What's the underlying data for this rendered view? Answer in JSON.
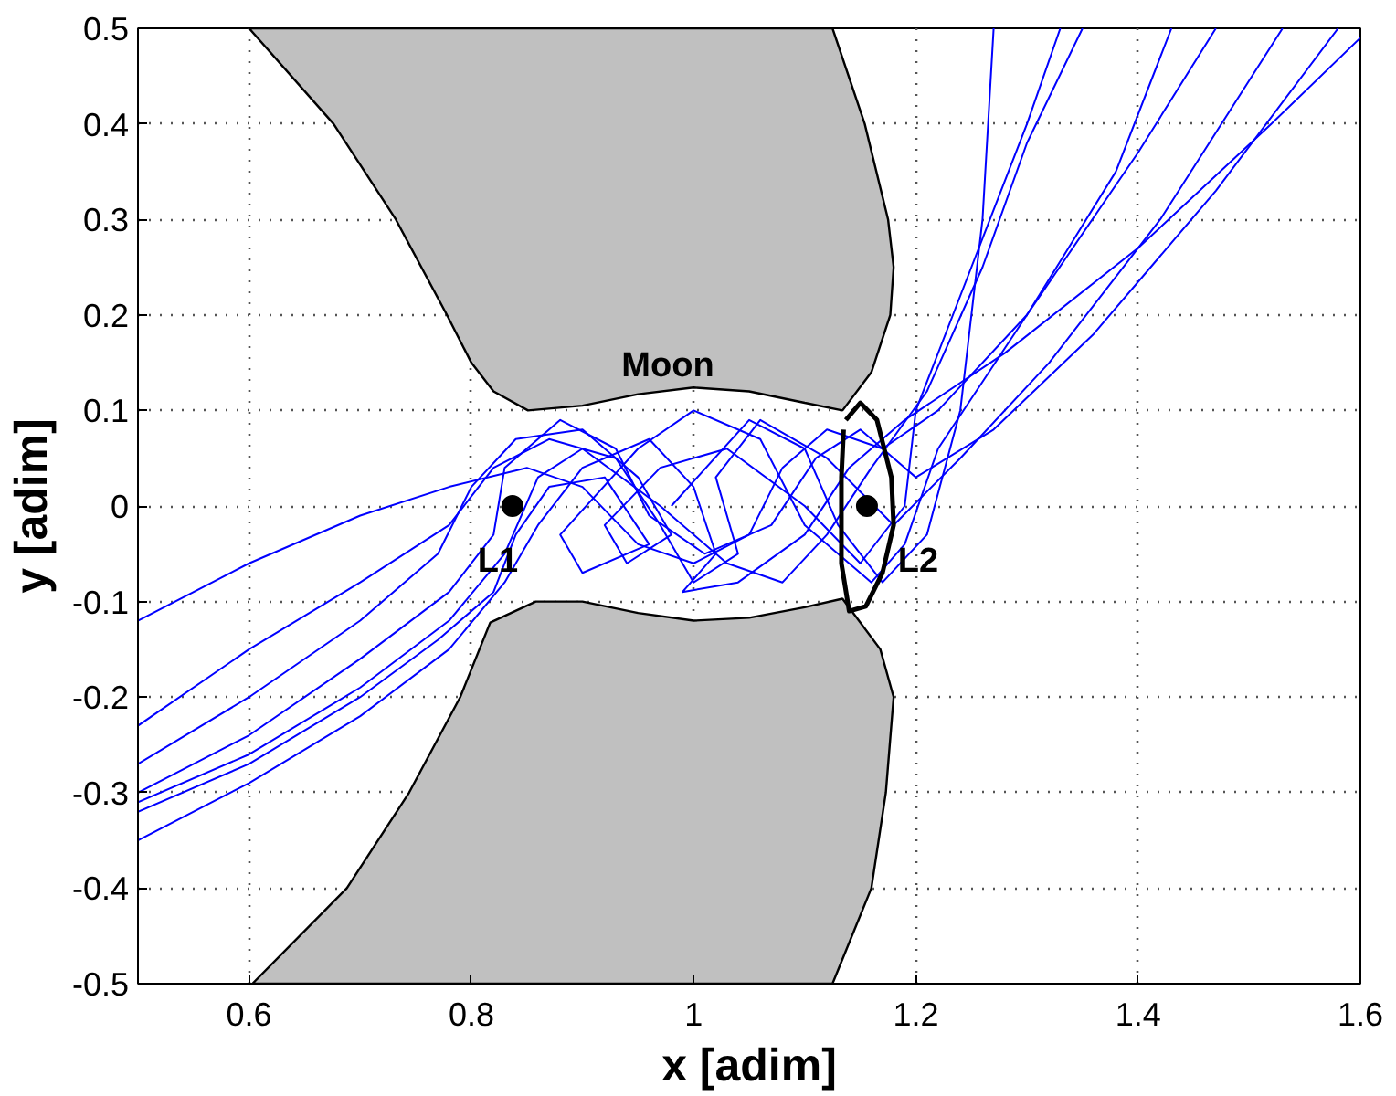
{
  "chart_data": {
    "type": "line",
    "xlabel": "x [adim]",
    "ylabel": "y [adim]",
    "xlim": [
      0.5,
      1.6
    ],
    "ylim": [
      -0.5,
      0.5
    ],
    "xticks": [
      0.6,
      0.8,
      {
        "value": 1,
        "label": "1"
      },
      1.2,
      1.4,
      1.6
    ],
    "yticks": [
      -0.5,
      -0.4,
      -0.3,
      -0.2,
      -0.1,
      {
        "value": 0,
        "label": "0"
      },
      0.1,
      0.2,
      0.3,
      0.4,
      0.5
    ],
    "grid": true,
    "series": [
      {
        "type": "area",
        "color": "#c0c0c0",
        "x": [
          0.6,
          0.676,
          0.732,
          0.778,
          0.8,
          0.82,
          0.851,
          0.9,
          0.95,
          1.0,
          1.05,
          1.1,
          1.134,
          1.16,
          1.177,
          1.18,
          1.175,
          1.154,
          1.125
        ],
        "values": [
          0.5,
          0.4,
          0.3,
          0.2,
          0.15,
          0.12,
          0.1,
          0.105,
          0.117,
          0.124,
          0.12,
          0.108,
          0.1,
          0.14,
          0.2,
          0.25,
          0.3,
          0.4,
          0.5
        ]
      },
      {
        "type": "area",
        "color": "#c0c0c0",
        "x": [
          0.603,
          0.688,
          0.744,
          0.79,
          0.817,
          0.858,
          0.9,
          0.95,
          1.0,
          1.05,
          1.1,
          1.134,
          1.168,
          1.18,
          1.173,
          1.16,
          1.125
        ],
        "values": [
          -0.5,
          -0.4,
          -0.3,
          -0.2,
          -0.122,
          -0.1,
          -0.1,
          -0.112,
          -0.12,
          -0.117,
          -0.106,
          -0.097,
          -0.15,
          -0.2,
          -0.3,
          -0.4,
          -0.5
        ]
      },
      {
        "color": "#0000ff",
        "x": [
          0.5,
          0.6,
          0.7,
          0.78,
          0.85,
          0.9,
          0.95,
          1.0,
          1.05,
          1.08,
          1.12,
          1.17,
          1.22,
          1.3,
          1.38,
          1.43
        ],
        "values": [
          -0.12,
          -0.06,
          -0.01,
          0.02,
          0.04,
          0.02,
          -0.04,
          -0.06,
          -0.03,
          0.04,
          0.08,
          0.06,
          0.1,
          0.2,
          0.35,
          0.5
        ]
      },
      {
        "color": "#0000ff",
        "x": [
          0.5,
          0.6,
          0.7,
          0.78,
          0.82,
          0.87,
          0.93,
          0.97,
          1.0,
          1.04,
          1.02,
          1.06,
          1.12,
          1.18,
          1.24,
          1.32,
          1.42,
          1.53
        ],
        "values": [
          -0.23,
          -0.15,
          -0.08,
          -0.02,
          0.04,
          0.07,
          0.05,
          -0.02,
          -0.08,
          -0.05,
          0.03,
          0.09,
          0.05,
          -0.02,
          0.05,
          0.15,
          0.3,
          0.5
        ]
      },
      {
        "color": "#0000ff",
        "x": [
          0.5,
          0.6,
          0.7,
          0.77,
          0.8,
          0.84,
          0.9,
          0.95,
          0.98,
          0.94,
          0.92,
          0.97,
          1.03,
          1.1,
          1.15,
          1.19,
          1.2,
          1.25,
          1.3,
          1.33
        ],
        "values": [
          -0.27,
          -0.2,
          -0.12,
          -0.05,
          0.02,
          0.07,
          0.08,
          0.03,
          -0.03,
          -0.06,
          -0.02,
          0.04,
          0.06,
          0.0,
          -0.06,
          0.0,
          0.1,
          0.25,
          0.4,
          0.5
        ]
      },
      {
        "color": "#0000ff",
        "x": [
          0.5,
          0.6,
          0.7,
          0.78,
          0.82,
          0.83,
          0.88,
          0.93,
          0.96,
          1.01,
          1.07,
          1.11,
          1.15,
          1.2,
          1.27,
          1.36,
          1.47,
          1.58
        ],
        "values": [
          -0.3,
          -0.24,
          -0.16,
          -0.09,
          -0.03,
          0.04,
          0.09,
          0.06,
          -0.01,
          -0.05,
          -0.02,
          0.05,
          0.08,
          0.03,
          0.08,
          0.18,
          0.33,
          0.5
        ]
      },
      {
        "color": "#0000ff",
        "x": [
          0.5,
          0.6,
          0.7,
          0.78,
          0.83,
          0.86,
          0.9,
          0.97,
          1.03,
          1.08,
          1.12,
          1.16,
          1.21,
          1.26,
          1.3,
          1.35
        ],
        "values": [
          -0.31,
          -0.26,
          -0.19,
          -0.12,
          -0.05,
          0.03,
          0.06,
          0.0,
          -0.06,
          -0.08,
          -0.03,
          0.04,
          0.12,
          0.25,
          0.38,
          0.5
        ]
      },
      {
        "color": "#0000ff",
        "x": [
          0.5,
          0.6,
          0.7,
          0.77,
          0.82,
          0.84,
          0.87,
          0.92,
          0.96,
          0.9,
          0.88,
          0.95,
          1.0,
          1.06,
          1.1,
          1.16,
          1.19,
          1.22,
          1.3,
          1.4,
          1.47
        ],
        "values": [
          -0.32,
          -0.27,
          -0.2,
          -0.14,
          -0.09,
          -0.03,
          0.02,
          0.03,
          -0.04,
          -0.07,
          -0.03,
          0.06,
          0.1,
          0.07,
          -0.02,
          -0.08,
          -0.04,
          0.06,
          0.2,
          0.37,
          0.5
        ]
      },
      {
        "color": "#0000ff",
        "x": [
          0.5,
          0.6,
          0.7,
          0.78,
          0.83,
          0.86,
          0.9,
          0.96,
          1.0,
          1.02,
          0.99,
          1.04,
          1.1,
          1.14,
          1.19,
          1.28,
          1.4,
          1.52,
          1.6
        ],
        "values": [
          -0.35,
          -0.29,
          -0.22,
          -0.15,
          -0.08,
          -0.02,
          0.04,
          0.07,
          0.02,
          -0.05,
          -0.09,
          -0.08,
          -0.03,
          0.04,
          0.09,
          0.16,
          0.27,
          0.4,
          0.49
        ]
      },
      {
        "color": "#0000ff",
        "x": [
          0.98,
          1.05,
          1.1,
          1.13,
          1.17,
          1.21,
          1.24,
          1.26,
          1.27
        ],
        "values": [
          0.0,
          0.09,
          0.06,
          -0.02,
          -0.08,
          -0.03,
          0.1,
          0.3,
          0.5
        ]
      },
      {
        "color": "#000000",
        "x": [
          1.137,
          1.15,
          1.165,
          1.178,
          1.18,
          1.17,
          1.155,
          1.14,
          1.133,
          1.133,
          1.135
        ],
        "values": [
          0.09,
          0.108,
          0.09,
          0.03,
          -0.02,
          -0.07,
          -0.105,
          -0.11,
          -0.06,
          0.03,
          0.08
        ]
      },
      {
        "type": "scatter",
        "color": "#000000",
        "marker": "circle",
        "x": [
          0.837,
          1.156
        ],
        "values": [
          0,
          0
        ]
      }
    ],
    "annotations": [
      "Moon",
      {
        "text": "L1",
        "x": 0.837,
        "y": 0
      },
      {
        "text": "L2",
        "x": 1.156,
        "y": 0
      }
    ]
  }
}
